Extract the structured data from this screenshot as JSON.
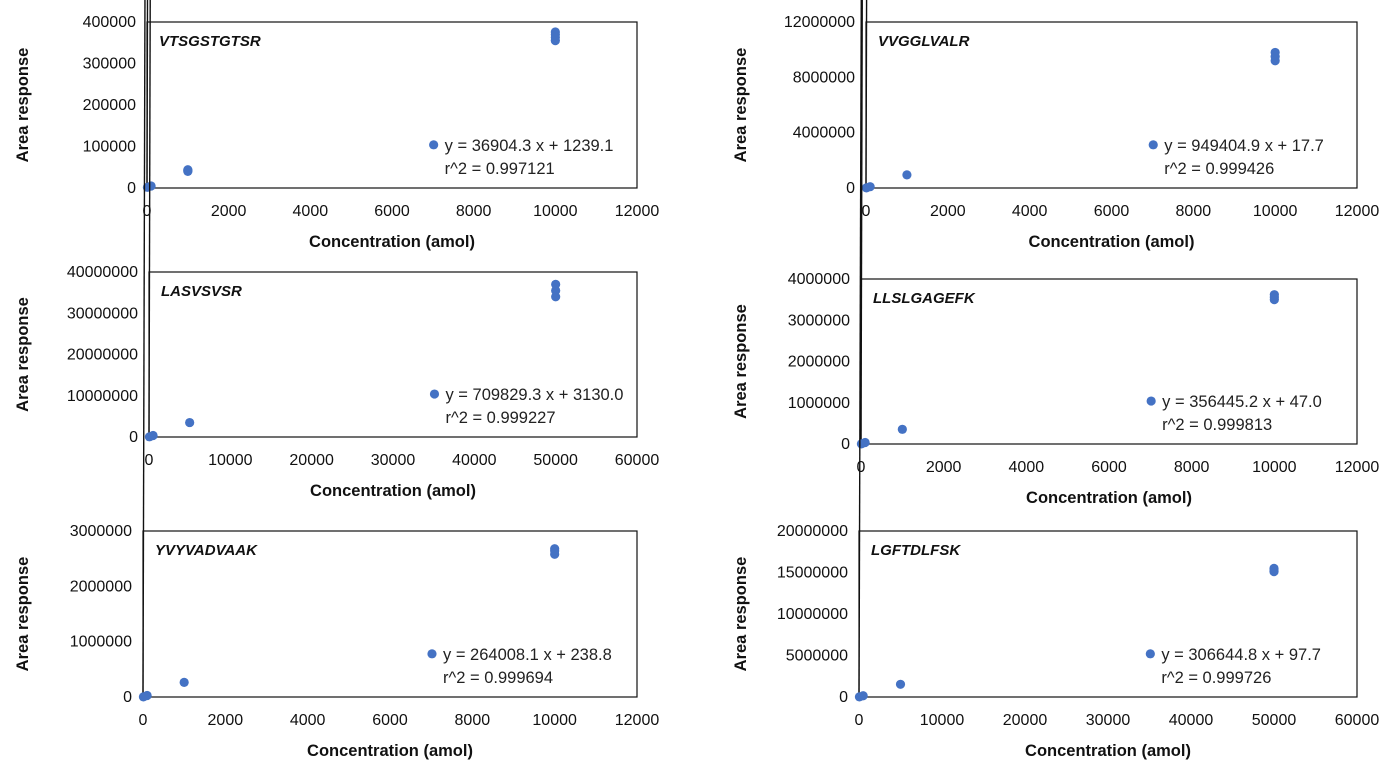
{
  "colors": {
    "points": "#4472C4",
    "fit_line": "#111111",
    "frame": "#111111"
  },
  "chart_data": [
    {
      "type": "scatter",
      "title": "VTSGSTGTSR",
      "xlabel": "Concentration (amol)",
      "ylabel": "Area response",
      "xlim": [
        0,
        12000
      ],
      "ylim": [
        0,
        400000
      ],
      "xticks": [
        "0",
        "2000",
        "4000",
        "6000",
        "8000",
        "10000",
        "12000"
      ],
      "yticks": [
        "0",
        "100000",
        "200000",
        "300000",
        "400000"
      ],
      "x": [
        10,
        100,
        1000,
        1000,
        1000,
        10000,
        10000,
        10000,
        10000
      ],
      "y": [
        1600,
        4900,
        40000,
        42000,
        44000,
        355000,
        363000,
        370000,
        376000
      ],
      "fit": {
        "slope": 36904.3,
        "intercept": 1239.1
      },
      "legend": "y = 36904.3 x + 1239.1",
      "r2_text": "r^2 = 0.997121",
      "legend_pos": "bottom-right",
      "grid": false
    },
    {
      "type": "scatter",
      "title": "VVGGLVALR",
      "xlabel": "Concentration (amol)",
      "ylabel": "Area response",
      "xlim": [
        0,
        12000
      ],
      "ylim": [
        0,
        12000000
      ],
      "xticks": [
        "0",
        "2000",
        "4000",
        "6000",
        "8000",
        "10000",
        "12000"
      ],
      "yticks": [
        "0",
        "4000000",
        "8000000",
        "12000000"
      ],
      "x": [
        10,
        100,
        1000,
        10000,
        10000,
        10000
      ],
      "y": [
        9500,
        95000,
        950000,
        9200000,
        9500000,
        9800000
      ],
      "fit": {
        "slope": 949404.9,
        "intercept": 17.7
      },
      "legend": "y = 949404.9 x + 17.7",
      "r2_text": "r^2 = 0.999426",
      "legend_pos": "bottom-right",
      "grid": false
    },
    {
      "type": "scatter",
      "title": "LASVSVSR",
      "xlabel": "Concentration (amol)",
      "ylabel": "Area response",
      "xlim": [
        0,
        60000
      ],
      "ylim": [
        0,
        40000000
      ],
      "xticks": [
        "0",
        "10000",
        "20000",
        "30000",
        "40000",
        "50000",
        "60000"
      ],
      "yticks": [
        "0",
        "10000000",
        "20000000",
        "30000000",
        "40000000"
      ],
      "x": [
        50,
        500,
        5000,
        50000,
        50000,
        50000
      ],
      "y": [
        40000,
        360000,
        3500000,
        34000000,
        35500000,
        37000000
      ],
      "fit": {
        "slope": 709829.3,
        "intercept": 3130.0
      },
      "legend": "y = 709829.3 x + 3130.0",
      "r2_text": "r^2 = 0.999227",
      "legend_pos": "bottom-right",
      "grid": false
    },
    {
      "type": "scatter",
      "title": "LLSLGAGEFK",
      "xlabel": "Concentration (amol)",
      "ylabel": "Area response",
      "xlim": [
        0,
        12000
      ],
      "ylim": [
        0,
        4000000
      ],
      "xticks": [
        "0",
        "2000",
        "4000",
        "6000",
        "8000",
        "10000",
        "12000"
      ],
      "yticks": [
        "0",
        "1000000",
        "2000000",
        "3000000",
        "4000000"
      ],
      "x": [
        10,
        100,
        1000,
        10000,
        10000,
        10000
      ],
      "y": [
        3600,
        36000,
        356000,
        3500000,
        3560000,
        3620000
      ],
      "fit": {
        "slope": 356445.2,
        "intercept": 47.0
      },
      "legend": "y = 356445.2 x + 47.0",
      "r2_text": "r^2 = 0.999813",
      "legend_pos": "bottom-right",
      "grid": false
    },
    {
      "type": "scatter",
      "title": "YVYVADVAAK",
      "xlabel": "Concentration (amol)",
      "ylabel": "Area response",
      "xlim": [
        0,
        12000
      ],
      "ylim": [
        0,
        3000000
      ],
      "xticks": [
        "0",
        "2000",
        "4000",
        "6000",
        "8000",
        "10000",
        "12000"
      ],
      "yticks": [
        "0",
        "1000000",
        "2000000",
        "3000000"
      ],
      "x": [
        10,
        100,
        1000,
        10000,
        10000,
        10000
      ],
      "y": [
        2800,
        26500,
        264000,
        2580000,
        2640000,
        2680000
      ],
      "fit": {
        "slope": 264008.1,
        "intercept": 238.8
      },
      "legend": "y = 264008.1 x + 238.8",
      "r2_text": "r^2 = 0.999694",
      "legend_pos": "bottom-right",
      "grid": false
    },
    {
      "type": "scatter",
      "title": "LGFTDLFSK",
      "xlabel": "Concentration (amol)",
      "ylabel": "Area response",
      "xlim": [
        0,
        60000
      ],
      "ylim": [
        0,
        20000000
      ],
      "xticks": [
        "0",
        "10000",
        "20000",
        "30000",
        "40000",
        "50000",
        "60000"
      ],
      "yticks": [
        "0",
        "5000000",
        "10000000",
        "15000000",
        "20000000"
      ],
      "x": [
        50,
        500,
        5000,
        50000,
        50000,
        50000
      ],
      "y": [
        15000,
        153000,
        1530000,
        15100000,
        15300000,
        15500000
      ],
      "fit": {
        "slope": 306644.8,
        "intercept": 97.7
      },
      "legend": "y = 306644.8 x + 97.7",
      "r2_text": "r^2 = 0.999726",
      "legend_pos": "bottom-right",
      "grid": false
    }
  ]
}
